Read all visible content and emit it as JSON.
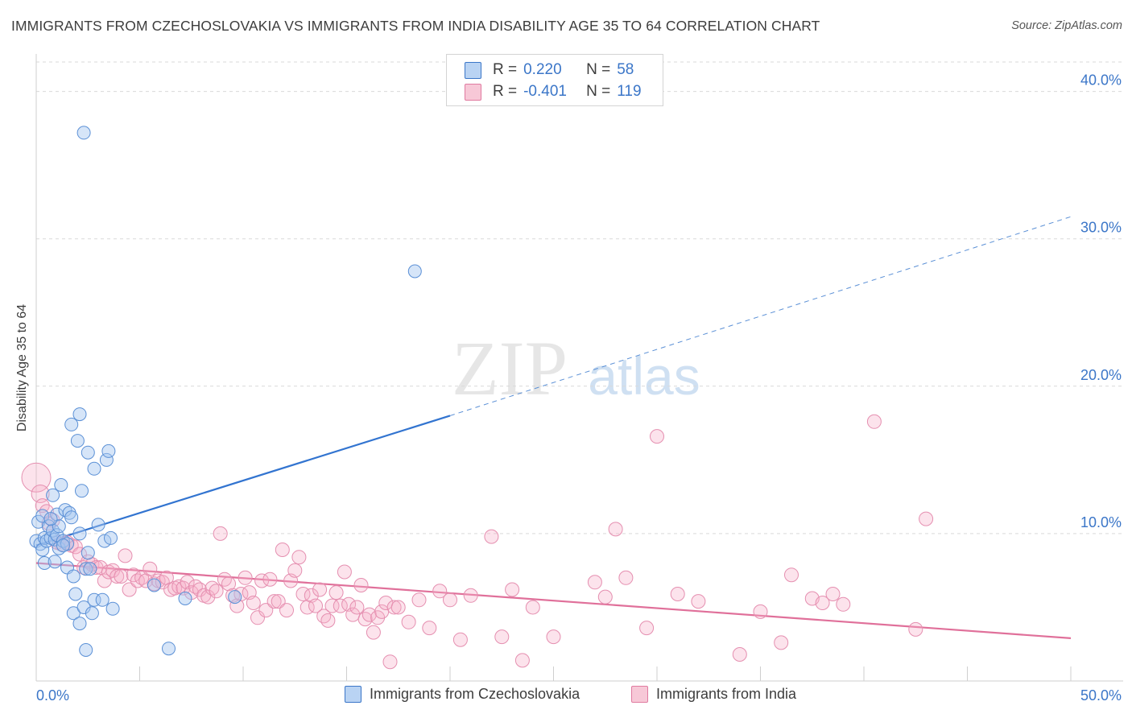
{
  "header": {
    "title": "IMMIGRANTS FROM CZECHOSLOVAKIA VS IMMIGRANTS FROM INDIA DISABILITY AGE 35 TO 64 CORRELATION CHART",
    "source": "Source: ZipAtlas.com"
  },
  "watermark": {
    "zip": "ZIP",
    "atlas": "atlas"
  },
  "legend": {
    "rows": [
      {
        "r_label": "R =",
        "r_value": "0.220",
        "n_label": "N =",
        "n_value": "58"
      },
      {
        "r_label": "R =",
        "r_value": "-0.401",
        "n_label": "N =",
        "n_value": "119"
      }
    ]
  },
  "chart_data": {
    "type": "scatter",
    "title": "IMMIGRANTS FROM CZECHOSLOVAKIA VS IMMIGRANTS FROM INDIA DISABILITY AGE 35 TO 64 CORRELATION CHART",
    "xlabel": "",
    "ylabel": "Disability Age 35 to 64",
    "xlim": [
      0,
      50
    ],
    "ylim": [
      0,
      42
    ],
    "x_tick_labels": [
      "0.0%",
      "50.0%"
    ],
    "y_ticks": [
      10,
      20,
      30,
      40
    ],
    "y_tick_labels": [
      "10.0%",
      "20.0%",
      "30.0%",
      "40.0%"
    ],
    "grid": "horizontal dashed",
    "legend_position": "bottom-center",
    "colors": {
      "czechoslovakia": "#3b76c8",
      "india": "#e07aa0",
      "axis_text": "#3b76c8"
    },
    "series": [
      {
        "name": "Immigrants from Czechoslovakia",
        "R": 0.22,
        "N": 58,
        "trend": {
          "x0": 0,
          "y0": 9.2,
          "x1": 20,
          "y1": 18.0,
          "dashed_to_x": 50,
          "dashed_to_y": 31.5
        },
        "points": [
          [
            0.0,
            9.5
          ],
          [
            0.1,
            10.8
          ],
          [
            0.2,
            9.3
          ],
          [
            0.3,
            11.2
          ],
          [
            0.3,
            8.9
          ],
          [
            0.4,
            9.7
          ],
          [
            0.4,
            8.0
          ],
          [
            0.5,
            9.5
          ],
          [
            0.6,
            10.5
          ],
          [
            0.7,
            9.7
          ],
          [
            0.8,
            10.2
          ],
          [
            0.8,
            12.6
          ],
          [
            0.9,
            9.6
          ],
          [
            1.0,
            9.9
          ],
          [
            1.0,
            11.3
          ],
          [
            1.1,
            9.0
          ],
          [
            1.1,
            10.5
          ],
          [
            1.2,
            13.3
          ],
          [
            1.3,
            9.5
          ],
          [
            1.4,
            11.6
          ],
          [
            1.5,
            7.7
          ],
          [
            1.5,
            9.3
          ],
          [
            1.6,
            11.4
          ],
          [
            1.7,
            11.1
          ],
          [
            1.7,
            17.4
          ],
          [
            1.8,
            7.1
          ],
          [
            1.8,
            4.6
          ],
          [
            1.9,
            5.9
          ],
          [
            2.0,
            16.3
          ],
          [
            2.1,
            10.0
          ],
          [
            2.1,
            3.9
          ],
          [
            2.1,
            18.1
          ],
          [
            2.2,
            12.9
          ],
          [
            2.3,
            5.0
          ],
          [
            2.4,
            7.6
          ],
          [
            2.4,
            2.1
          ],
          [
            2.3,
            37.2
          ],
          [
            2.5,
            8.7
          ],
          [
            2.5,
            15.5
          ],
          [
            2.6,
            7.6
          ],
          [
            2.7,
            4.6
          ],
          [
            2.8,
            5.5
          ],
          [
            2.8,
            14.4
          ],
          [
            3.0,
            10.6
          ],
          [
            3.2,
            5.5
          ],
          [
            3.3,
            9.5
          ],
          [
            3.4,
            15.0
          ],
          [
            3.5,
            15.6
          ],
          [
            3.6,
            9.7
          ],
          [
            3.7,
            4.9
          ],
          [
            5.7,
            6.5
          ],
          [
            6.4,
            2.2
          ],
          [
            7.2,
            5.6
          ],
          [
            9.6,
            5.7
          ],
          [
            18.3,
            27.8
          ],
          [
            0.7,
            11.0
          ],
          [
            1.3,
            9.2
          ],
          [
            0.9,
            8.1
          ]
        ]
      },
      {
        "name": "Immigrants from India",
        "R": -0.401,
        "N": 119,
        "trend": {
          "x0": 0,
          "y0": 8.0,
          "x1": 50,
          "y1": 2.9
        },
        "points": [
          [
            0.0,
            13.8
          ],
          [
            0.2,
            12.7
          ],
          [
            0.3,
            11.9
          ],
          [
            0.5,
            11.5
          ],
          [
            0.6,
            10.7
          ],
          [
            0.8,
            10.9
          ],
          [
            1.0,
            9.4
          ],
          [
            1.2,
            9.3
          ],
          [
            1.5,
            9.4
          ],
          [
            1.7,
            9.2
          ],
          [
            1.9,
            9.1
          ],
          [
            2.1,
            8.6
          ],
          [
            2.3,
            7.7
          ],
          [
            2.5,
            8.1
          ],
          [
            2.7,
            7.9
          ],
          [
            2.9,
            7.7
          ],
          [
            3.1,
            7.7
          ],
          [
            3.3,
            6.8
          ],
          [
            3.5,
            7.4
          ],
          [
            3.7,
            7.5
          ],
          [
            3.9,
            7.1
          ],
          [
            4.1,
            7.1
          ],
          [
            4.3,
            8.5
          ],
          [
            4.5,
            6.2
          ],
          [
            4.7,
            7.2
          ],
          [
            4.9,
            6.8
          ],
          [
            5.1,
            7.0
          ],
          [
            5.3,
            6.8
          ],
          [
            5.5,
            7.6
          ],
          [
            5.7,
            6.6
          ],
          [
            5.9,
            6.8
          ],
          [
            6.1,
            6.7
          ],
          [
            6.3,
            7.0
          ],
          [
            6.5,
            6.2
          ],
          [
            6.7,
            6.3
          ],
          [
            6.9,
            6.4
          ],
          [
            7.1,
            6.3
          ],
          [
            7.3,
            6.7
          ],
          [
            7.5,
            6.0
          ],
          [
            7.7,
            6.4
          ],
          [
            7.9,
            6.2
          ],
          [
            8.1,
            5.8
          ],
          [
            8.3,
            5.7
          ],
          [
            8.5,
            6.3
          ],
          [
            8.7,
            6.1
          ],
          [
            8.9,
            10.0
          ],
          [
            9.1,
            6.9
          ],
          [
            9.3,
            6.6
          ],
          [
            9.5,
            5.8
          ],
          [
            9.7,
            5.1
          ],
          [
            9.9,
            5.9
          ],
          [
            10.1,
            7.0
          ],
          [
            10.3,
            6.0
          ],
          [
            10.5,
            5.3
          ],
          [
            10.7,
            4.3
          ],
          [
            10.9,
            6.8
          ],
          [
            11.1,
            4.8
          ],
          [
            11.3,
            6.9
          ],
          [
            11.5,
            5.4
          ],
          [
            11.7,
            5.4
          ],
          [
            11.9,
            8.9
          ],
          [
            12.1,
            4.8
          ],
          [
            12.3,
            6.8
          ],
          [
            12.5,
            7.5
          ],
          [
            12.7,
            8.4
          ],
          [
            12.9,
            5.9
          ],
          [
            13.1,
            5.0
          ],
          [
            13.3,
            5.8
          ],
          [
            13.5,
            5.1
          ],
          [
            13.7,
            6.2
          ],
          [
            13.9,
            4.4
          ],
          [
            14.1,
            4.1
          ],
          [
            14.3,
            5.1
          ],
          [
            14.5,
            6.0
          ],
          [
            14.7,
            5.1
          ],
          [
            14.9,
            7.4
          ],
          [
            15.1,
            5.2
          ],
          [
            15.3,
            4.5
          ],
          [
            15.5,
            5.0
          ],
          [
            15.7,
            6.5
          ],
          [
            15.9,
            4.2
          ],
          [
            16.1,
            4.5
          ],
          [
            16.3,
            3.3
          ],
          [
            16.5,
            4.3
          ],
          [
            16.7,
            4.7
          ],
          [
            16.9,
            5.3
          ],
          [
            17.1,
            1.3
          ],
          [
            17.3,
            5.0
          ],
          [
            17.5,
            5.0
          ],
          [
            18.0,
            4.0
          ],
          [
            18.5,
            5.5
          ],
          [
            19.0,
            3.6
          ],
          [
            19.5,
            6.1
          ],
          [
            20.0,
            5.5
          ],
          [
            20.5,
            2.8
          ],
          [
            21.0,
            5.8
          ],
          [
            22.0,
            9.8
          ],
          [
            22.5,
            3.0
          ],
          [
            23.0,
            6.2
          ],
          [
            23.5,
            1.4
          ],
          [
            24.0,
            5.0
          ],
          [
            25.0,
            3.0
          ],
          [
            27.0,
            6.7
          ],
          [
            27.5,
            5.7
          ],
          [
            28.0,
            10.3
          ],
          [
            28.5,
            7.0
          ],
          [
            29.5,
            3.6
          ],
          [
            30.0,
            16.6
          ],
          [
            31.0,
            5.9
          ],
          [
            32.0,
            5.4
          ],
          [
            34.0,
            1.8
          ],
          [
            35.0,
            4.7
          ],
          [
            36.0,
            2.6
          ],
          [
            36.5,
            7.2
          ],
          [
            37.5,
            5.6
          ],
          [
            38.0,
            5.3
          ],
          [
            38.5,
            5.9
          ],
          [
            39.0,
            5.2
          ],
          [
            40.5,
            17.6
          ],
          [
            42.5,
            3.5
          ],
          [
            43.0,
            11.0
          ]
        ]
      }
    ]
  },
  "bottom_legend": {
    "items": [
      {
        "label": "Immigrants from Czechoslovakia"
      },
      {
        "label": "Immigrants from India"
      }
    ]
  }
}
